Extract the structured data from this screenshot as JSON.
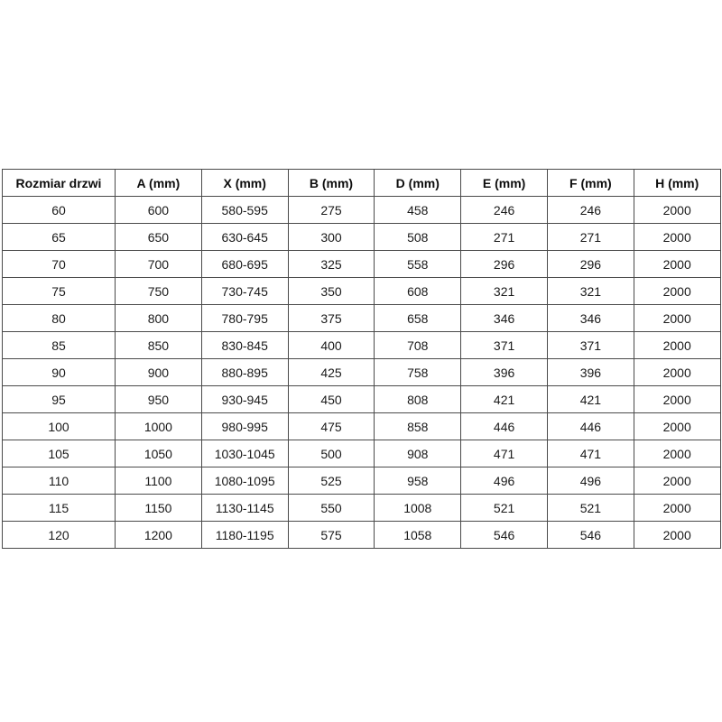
{
  "table": {
    "name": "door-size-dimensions-table",
    "headers": [
      "Rozmiar drzwi",
      "A (mm)",
      "X (mm)",
      "B (mm)",
      "D (mm)",
      "E (mm)",
      "F (mm)",
      "H (mm)"
    ],
    "rows": [
      [
        "60",
        "600",
        "580-595",
        "275",
        "458",
        "246",
        "246",
        "2000"
      ],
      [
        "65",
        "650",
        "630-645",
        "300",
        "508",
        "271",
        "271",
        "2000"
      ],
      [
        "70",
        "700",
        "680-695",
        "325",
        "558",
        "296",
        "296",
        "2000"
      ],
      [
        "75",
        "750",
        "730-745",
        "350",
        "608",
        "321",
        "321",
        "2000"
      ],
      [
        "80",
        "800",
        "780-795",
        "375",
        "658",
        "346",
        "346",
        "2000"
      ],
      [
        "85",
        "850",
        "830-845",
        "400",
        "708",
        "371",
        "371",
        "2000"
      ],
      [
        "90",
        "900",
        "880-895",
        "425",
        "758",
        "396",
        "396",
        "2000"
      ],
      [
        "95",
        "950",
        "930-945",
        "450",
        "808",
        "421",
        "421",
        "2000"
      ],
      [
        "100",
        "1000",
        "980-995",
        "475",
        "858",
        "446",
        "446",
        "2000"
      ],
      [
        "105",
        "1050",
        "1030-1045",
        "500",
        "908",
        "471",
        "471",
        "2000"
      ],
      [
        "110",
        "1100",
        "1080-1095",
        "525",
        "958",
        "496",
        "496",
        "2000"
      ],
      [
        "115",
        "1150",
        "1130-1145",
        "550",
        "1008",
        "521",
        "521",
        "2000"
      ],
      [
        "120",
        "1200",
        "1180-1195",
        "575",
        "1058",
        "546",
        "546",
        "2000"
      ]
    ],
    "colors": {
      "border": "#4a4a4a",
      "header_text": "#0d0d0d",
      "cell_text": "#1a1a1a",
      "background": "#ffffff"
    }
  }
}
